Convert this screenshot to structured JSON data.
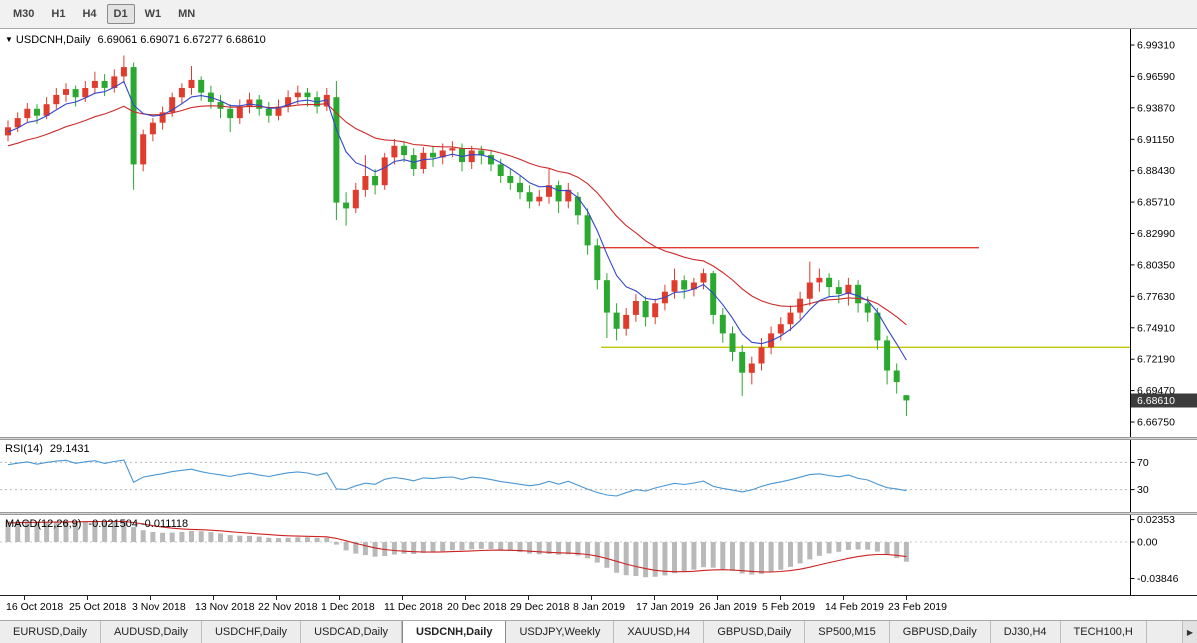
{
  "toolbar": {
    "timeframes": [
      {
        "label": "M30",
        "active": false
      },
      {
        "label": "H1",
        "active": false
      },
      {
        "label": "H4",
        "active": false
      },
      {
        "label": "D1",
        "active": true
      },
      {
        "label": "W1",
        "active": false
      },
      {
        "label": "MN",
        "active": false
      }
    ]
  },
  "chart_header": {
    "menu_icon": "▼",
    "symbol": "USDCNH,Daily",
    "ohlc": "6.69061 6.69071 6.67277 6.68610"
  },
  "rsi_panel": {
    "label": "RSI(14)",
    "value": "29.1431"
  },
  "macd_panel": {
    "label": "MACD(12,26,9)",
    "value": "-0.021504 -0.011118"
  },
  "tabs": {
    "scroll_right": "▶",
    "items": [
      {
        "label": "EURUSD,Daily",
        "active": false
      },
      {
        "label": "AUDUSD,Daily",
        "active": false
      },
      {
        "label": "USDCHF,Daily",
        "active": false
      },
      {
        "label": "USDCAD,Daily",
        "active": false
      },
      {
        "label": "USDCNH,Daily",
        "active": true
      },
      {
        "label": "USDJPY,Weekly",
        "active": false
      },
      {
        "label": "XAUUSD,H4",
        "active": false
      },
      {
        "label": "GBPUSD,Daily",
        "active": false
      },
      {
        "label": "SP500,M15",
        "active": false
      },
      {
        "label": "GBPUSD,Daily",
        "active": false
      },
      {
        "label": "DJ30,H4",
        "active": false
      },
      {
        "label": "TECH100,H",
        "active": false
      }
    ]
  },
  "chart_data": {
    "type": "candlestick",
    "title": "USDCNH,Daily",
    "current_price": "6.68610",
    "current_bar": {
      "open": 6.69061,
      "high": 6.69071,
      "low": 6.67277,
      "close": 6.6861
    },
    "y_axis_labels": [
      "6.99310",
      "6.96590",
      "6.93870",
      "6.91150",
      "6.88430",
      "6.85710",
      "6.82990",
      "6.80350",
      "6.77630",
      "6.74910",
      "6.72190",
      "6.69470",
      "6.66750"
    ],
    "y_range": [
      6.6675,
      6.9931
    ],
    "x_labels": [
      "16 Oct 2018",
      "25 Oct 2018",
      "3 Nov 2018",
      "13 Nov 2018",
      "22 Nov 2018",
      "1 Dec 2018",
      "11 Dec 2018",
      "20 Dec 2018",
      "29 Dec 2018",
      "8 Jan 2019",
      "17 Jan 2019",
      "26 Jan 2019",
      "5 Feb 2019",
      "14 Feb 2019",
      "23 Feb 2019"
    ],
    "colors": {
      "up": "#e03c2d",
      "down": "#2aa82f",
      "ma_fast": "#3346c8",
      "ma_slow": "#cc2a2a",
      "rsi": "#4a96d2",
      "macd_hist": "#b9b9b9",
      "macd_signal": "#cc2222",
      "resistance": "#e23b2e",
      "support": "#c0c800",
      "price_badge_bg": "#3c3c3c"
    },
    "hlines": [
      {
        "price": 6.818,
        "color_key": "resistance",
        "x1": 595,
        "x2": 979
      },
      {
        "price": 6.732,
        "color_key": "support",
        "x1": 601,
        "x2": 1130
      }
    ],
    "rsi": {
      "period": 14,
      "current": 29.1431,
      "levels": [
        "70",
        "30"
      ]
    },
    "macd": {
      "fast": 12,
      "slow": 26,
      "signal": 9,
      "main": -0.021504,
      "signal_value": -0.011118,
      "axis_labels": [
        "0.02353",
        "0.00",
        "-0.03846"
      ]
    },
    "candles": [
      [
        6.915,
        6.928,
        6.91,
        6.922
      ],
      [
        6.922,
        6.935,
        6.918,
        6.93
      ],
      [
        6.93,
        6.943,
        6.926,
        6.938
      ],
      [
        6.938,
        6.942,
        6.925,
        6.932
      ],
      [
        6.932,
        6.948,
        6.929,
        6.942
      ],
      [
        6.942,
        6.956,
        6.938,
        6.95
      ],
      [
        6.95,
        6.96,
        6.944,
        6.955
      ],
      [
        6.955,
        6.958,
        6.94,
        6.948
      ],
      [
        6.948,
        6.962,
        6.944,
        6.956
      ],
      [
        6.956,
        6.97,
        6.951,
        6.962
      ],
      [
        6.962,
        6.968,
        6.949,
        6.956
      ],
      [
        6.956,
        6.972,
        6.952,
        6.966
      ],
      [
        6.966,
        6.984,
        6.96,
        6.974
      ],
      [
        6.974,
        6.978,
        6.868,
        6.89
      ],
      [
        6.89,
        6.92,
        6.884,
        6.916
      ],
      [
        6.916,
        6.93,
        6.91,
        6.926
      ],
      [
        6.926,
        6.94,
        6.92,
        6.935
      ],
      [
        6.935,
        6.952,
        6.931,
        6.948
      ],
      [
        6.948,
        6.96,
        6.942,
        6.956
      ],
      [
        6.956,
        6.975,
        6.95,
        6.963
      ],
      [
        6.963,
        6.966,
        6.945,
        6.952
      ],
      [
        6.952,
        6.958,
        6.938,
        6.944
      ],
      [
        6.944,
        6.95,
        6.93,
        6.938
      ],
      [
        6.938,
        6.942,
        6.918,
        6.93
      ],
      [
        6.93,
        6.946,
        6.925,
        6.94
      ],
      [
        6.94,
        6.952,
        6.934,
        6.946
      ],
      [
        6.946,
        6.95,
        6.932,
        6.938
      ],
      [
        6.938,
        6.944,
        6.926,
        6.932
      ],
      [
        6.932,
        6.946,
        6.928,
        6.94
      ],
      [
        6.94,
        6.954,
        6.935,
        6.948
      ],
      [
        6.948,
        6.958,
        6.942,
        6.952
      ],
      [
        6.952,
        6.956,
        6.94,
        6.948
      ],
      [
        6.948,
        6.953,
        6.934,
        6.94
      ],
      [
        6.94,
        6.956,
        6.936,
        6.95
      ],
      [
        6.948,
        6.962,
        6.842,
        6.857
      ],
      [
        6.857,
        6.866,
        6.837,
        6.852
      ],
      [
        6.852,
        6.874,
        6.848,
        6.868
      ],
      [
        6.868,
        6.898,
        6.862,
        6.88
      ],
      [
        6.88,
        6.886,
        6.864,
        6.872
      ],
      [
        6.872,
        6.9,
        6.868,
        6.896
      ],
      [
        6.896,
        6.912,
        6.89,
        6.906
      ],
      [
        6.906,
        6.91,
        6.892,
        6.898
      ],
      [
        6.898,
        6.904,
        6.88,
        6.886
      ],
      [
        6.886,
        6.905,
        6.882,
        6.9
      ],
      [
        6.9,
        6.906,
        6.888,
        6.896
      ],
      [
        6.896,
        6.908,
        6.89,
        6.902
      ],
      [
        6.902,
        6.91,
        6.896,
        6.904
      ],
      [
        6.904,
        6.908,
        6.884,
        6.892
      ],
      [
        6.892,
        6.906,
        6.886,
        6.902
      ],
      [
        6.902,
        6.906,
        6.89,
        6.898
      ],
      [
        6.898,
        6.902,
        6.884,
        6.89
      ],
      [
        6.89,
        6.895,
        6.874,
        6.88
      ],
      [
        6.88,
        6.886,
        6.868,
        6.874
      ],
      [
        6.874,
        6.88,
        6.86,
        6.866
      ],
      [
        6.866,
        6.872,
        6.852,
        6.858
      ],
      [
        6.858,
        6.868,
        6.854,
        6.862
      ],
      [
        6.862,
        6.886,
        6.856,
        6.872
      ],
      [
        6.872,
        6.876,
        6.848,
        6.858
      ],
      [
        6.858,
        6.874,
        6.852,
        6.868
      ],
      [
        6.862,
        6.866,
        6.838,
        6.846
      ],
      [
        6.846,
        6.852,
        6.812,
        6.82
      ],
      [
        6.82,
        6.826,
        6.782,
        6.79
      ],
      [
        6.79,
        6.796,
        6.74,
        6.762
      ],
      [
        6.762,
        6.77,
        6.738,
        6.748
      ],
      [
        6.748,
        6.766,
        6.742,
        6.76
      ],
      [
        6.76,
        6.778,
        6.754,
        6.772
      ],
      [
        6.772,
        6.776,
        6.75,
        6.758
      ],
      [
        6.758,
        6.774,
        6.752,
        6.77
      ],
      [
        6.77,
        6.786,
        6.764,
        6.78
      ],
      [
        6.78,
        6.8,
        6.774,
        6.79
      ],
      [
        6.79,
        6.794,
        6.774,
        6.782
      ],
      [
        6.782,
        6.792,
        6.776,
        6.788
      ],
      [
        6.788,
        6.8,
        6.782,
        6.796
      ],
      [
        6.796,
        6.798,
        6.752,
        6.76
      ],
      [
        6.76,
        6.766,
        6.736,
        6.744
      ],
      [
        6.744,
        6.75,
        6.72,
        6.728
      ],
      [
        6.728,
        6.734,
        6.69,
        6.71
      ],
      [
        6.71,
        6.724,
        6.7,
        6.718
      ],
      [
        6.718,
        6.74,
        6.712,
        6.732
      ],
      [
        6.732,
        6.75,
        6.726,
        6.744
      ],
      [
        6.744,
        6.758,
        6.738,
        6.752
      ],
      [
        6.752,
        6.768,
        6.746,
        6.762
      ],
      [
        6.762,
        6.78,
        6.756,
        6.774
      ],
      [
        6.774,
        6.806,
        6.768,
        6.788
      ],
      [
        6.788,
        6.8,
        6.78,
        6.792
      ],
      [
        6.792,
        6.796,
        6.776,
        6.784
      ],
      [
        6.784,
        6.79,
        6.77,
        6.778
      ],
      [
        6.778,
        6.792,
        6.768,
        6.786
      ],
      [
        6.786,
        6.79,
        6.762,
        6.77
      ],
      [
        6.77,
        6.776,
        6.754,
        6.762
      ],
      [
        6.762,
        6.766,
        6.73,
        6.738
      ],
      [
        6.738,
        6.742,
        6.7,
        6.712
      ],
      [
        6.712,
        6.718,
        6.692,
        6.702
      ],
      [
        6.69061,
        6.69071,
        6.67277,
        6.6861
      ]
    ]
  }
}
